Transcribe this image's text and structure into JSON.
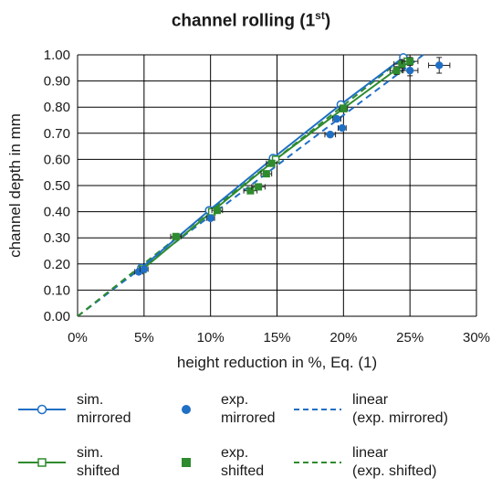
{
  "chart_data": {
    "type": "scatter",
    "title": "channel rolling (1",
    "title_sup": "st",
    "title_suffix": ")",
    "xlabel": "height reduction in %, Eq. (1)",
    "ylabel": "channel depth in mm",
    "xlim": [
      0,
      30
    ],
    "ylim": [
      0,
      1.0
    ],
    "x_ticks": [
      0,
      5,
      10,
      15,
      20,
      25,
      30
    ],
    "x_tick_labels": [
      "0%",
      "5%",
      "10%",
      "15%",
      "20%",
      "25%",
      "30%"
    ],
    "y_ticks": [
      0,
      0.1,
      0.2,
      0.3,
      0.4,
      0.5,
      0.6,
      0.7,
      0.8,
      0.9,
      1.0
    ],
    "y_tick_labels": [
      "0.00",
      "0.10",
      "0.20",
      "0.30",
      "0.40",
      "0.50",
      "0.60",
      "0.70",
      "0.80",
      "0.90",
      "1.00"
    ],
    "grid": true,
    "legend_position": "bottom",
    "colors": {
      "blue": "#1f6fc5",
      "green": "#2e8b2e",
      "grid": "#000000"
    },
    "series": [
      {
        "name": "sim. mirrored",
        "kind": "line-open-circle",
        "color": "#1f6fc5",
        "x": [
          4.8,
          9.9,
          14.7,
          19.8,
          24.5
        ],
        "y": [
          0.185,
          0.405,
          0.605,
          0.81,
          0.99
        ]
      },
      {
        "name": "sim. shifted",
        "kind": "line-open-square",
        "color": "#2e8b2e",
        "x": [
          4.9,
          10.1,
          14.9,
          20.0,
          24.8
        ],
        "y": [
          0.18,
          0.4,
          0.6,
          0.795,
          0.975
        ]
      },
      {
        "name": "exp. mirrored",
        "kind": "filled-circle",
        "color": "#1f6fc5",
        "x": [
          4.6,
          5.0,
          10.0,
          19.0,
          19.5,
          19.9,
          25.0,
          27.2
        ],
        "y": [
          0.17,
          0.18,
          0.375,
          0.695,
          0.755,
          0.72,
          0.94,
          0.96
        ],
        "xerr": [
          0.3,
          0.3,
          0.3,
          0.4,
          0.3,
          0.3,
          0.6,
          0.8
        ],
        "yerr": [
          0.008,
          0.008,
          0.008,
          0.008,
          0.008,
          0.008,
          0.02,
          0.03
        ]
      },
      {
        "name": "exp. shifted",
        "kind": "filled-square",
        "color": "#2e8b2e",
        "x": [
          7.4,
          10.5,
          13.0,
          13.6,
          14.2,
          14.6,
          20.0,
          24.0,
          24.4,
          25.0
        ],
        "y": [
          0.305,
          0.405,
          0.48,
          0.495,
          0.545,
          0.585,
          0.795,
          0.94,
          0.965,
          0.975
        ],
        "xerr": [
          0.4,
          0.4,
          0.5,
          0.5,
          0.4,
          0.4,
          0.3,
          0.5,
          0.6,
          0.6
        ],
        "yerr": [
          0.008,
          0.008,
          0.008,
          0.008,
          0.008,
          0.008,
          0.008,
          0.015,
          0.015,
          0.015
        ]
      },
      {
        "name": "linear (exp. mirrored)",
        "kind": "dashed-line",
        "color": "#1f6fc5",
        "x": [
          0,
          26.0
        ],
        "y": [
          0.0,
          1.0
        ]
      },
      {
        "name": "linear (exp. shifted)",
        "kind": "dashed-line",
        "color": "#2e8b2e",
        "x": [
          0,
          24.8
        ],
        "y": [
          0.0,
          1.0
        ]
      }
    ]
  },
  "legend": {
    "items": [
      {
        "key": "sim-mirrored",
        "line1": "sim.",
        "line2": "mirrored",
        "kind": "line-open-circle",
        "color": "#1f6fc5"
      },
      {
        "key": "exp-mirrored",
        "line1": "exp.",
        "line2": "mirrored",
        "kind": "filled-circle",
        "color": "#1f6fc5"
      },
      {
        "key": "linear-mirrored",
        "line1": "linear",
        "line2": "(exp. mirrored)",
        "kind": "dashed-line",
        "color": "#1f6fc5"
      },
      {
        "key": "sim-shifted",
        "line1": "sim.",
        "line2": "shifted",
        "kind": "line-open-square",
        "color": "#2e8b2e"
      },
      {
        "key": "exp-shifted",
        "line1": "exp.",
        "line2": "shifted",
        "kind": "filled-square",
        "color": "#2e8b2e"
      },
      {
        "key": "linear-shifted",
        "line1": "linear",
        "line2": "(exp. shifted)",
        "kind": "dashed-line",
        "color": "#2e8b2e"
      }
    ]
  }
}
